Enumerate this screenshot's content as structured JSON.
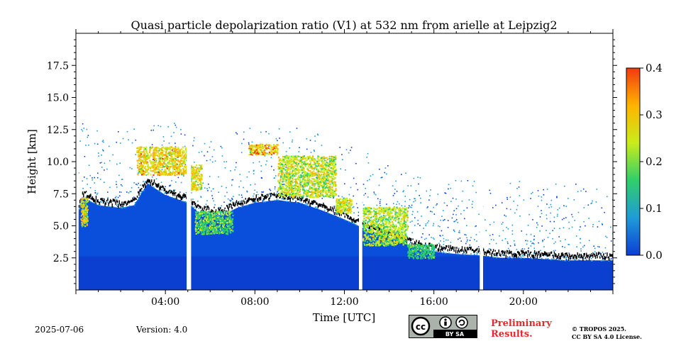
{
  "chart_data": {
    "type": "heatmap",
    "title": "Quasi particle depolarization ratio (V1) at 532 nm from arielle at Leipzig2",
    "xlabel": "Time [UTC]",
    "ylabel": "Height [km]",
    "xlim": [
      0,
      24
    ],
    "ylim": [
      0,
      20
    ],
    "x_ticks": [
      {
        "value": 4,
        "label": "04:00"
      },
      {
        "value": 8,
        "label": "08:00"
      },
      {
        "value": 12,
        "label": "12:00"
      },
      {
        "value": 16,
        "label": "16:00"
      },
      {
        "value": 20,
        "label": "20:00"
      }
    ],
    "y_ticks": [
      {
        "value": 2.5,
        "label": "2.5"
      },
      {
        "value": 5.0,
        "label": "5.0"
      },
      {
        "value": 7.5,
        "label": "7.5"
      },
      {
        "value": 10.0,
        "label": "10.0"
      },
      {
        "value": 12.5,
        "label": "12.5"
      },
      {
        "value": 15.0,
        "label": "15.0"
      },
      {
        "value": 17.5,
        "label": "17.5"
      }
    ],
    "colorbar": {
      "range": [
        0.0,
        0.4
      ],
      "ticks": [
        {
          "value": 0.0,
          "label": "0.0"
        },
        {
          "value": 0.1,
          "label": "0.1"
        },
        {
          "value": 0.2,
          "label": "0.2"
        },
        {
          "value": 0.3,
          "label": "0.3"
        },
        {
          "value": 0.4,
          "label": "0.4"
        }
      ],
      "colors": [
        "#0a3fd6",
        "#1f9bd8",
        "#2fcf6a",
        "#c9ec1a",
        "#ffb400",
        "#f23a10"
      ]
    },
    "background_top_km": [
      [
        0,
        5.5
      ],
      [
        0.3,
        7.2
      ],
      [
        1,
        6.6
      ],
      [
        2,
        6.4
      ],
      [
        2.6,
        6.6
      ],
      [
        3.2,
        8.3
      ],
      [
        4,
        7.4
      ],
      [
        5,
        6.8
      ],
      [
        5.5,
        6.0
      ],
      [
        6.5,
        5.8
      ],
      [
        7.2,
        6.4
      ],
      [
        8,
        6.8
      ],
      [
        9,
        7.0
      ],
      [
        10,
        6.8
      ],
      [
        11,
        6.2
      ],
      [
        12,
        5.5
      ],
      [
        13,
        4.7
      ],
      [
        14,
        4.1
      ],
      [
        15,
        3.4
      ],
      [
        16,
        3.0
      ],
      [
        17,
        2.8
      ],
      [
        18,
        2.7
      ],
      [
        19,
        2.5
      ],
      [
        20,
        2.5
      ],
      [
        21,
        2.4
      ],
      [
        22,
        2.3
      ],
      [
        23,
        2.3
      ],
      [
        24,
        2.3
      ]
    ],
    "high_depol_layers": [
      {
        "t0": 2.7,
        "t1": 5.0,
        "h0": 9.0,
        "h1": 11.2,
        "value": 0.35
      },
      {
        "t0": 5.1,
        "t1": 5.6,
        "h0": 7.8,
        "h1": 9.8,
        "value": 0.33
      },
      {
        "t0": 7.7,
        "t1": 9.0,
        "h0": 10.6,
        "h1": 11.4,
        "value": 0.36
      },
      {
        "t0": 9.0,
        "t1": 11.6,
        "h0": 7.3,
        "h1": 10.5,
        "value": 0.3
      },
      {
        "t0": 11.6,
        "t1": 12.3,
        "h0": 6.0,
        "h1": 7.2,
        "value": 0.3
      },
      {
        "t0": 12.8,
        "t1": 14.8,
        "h0": 3.5,
        "h1": 6.5,
        "value": 0.28
      },
      {
        "t0": 14.8,
        "t1": 16.0,
        "h0": 2.5,
        "h1": 3.6,
        "value": 0.2
      },
      {
        "t0": 0.2,
        "t1": 0.5,
        "h0": 5.0,
        "h1": 7.2,
        "value": 0.33
      },
      {
        "t0": 5.3,
        "t1": 7.0,
        "h0": 4.4,
        "h1": 6.2,
        "value": 0.22
      }
    ],
    "data_gaps_utc": [
      [
        0.0,
        0.12
      ],
      [
        4.95,
        5.15
      ],
      [
        12.65,
        12.8
      ],
      [
        18.05,
        18.2
      ]
    ],
    "date": "2025-07-06",
    "version": "Version: 4.0"
  },
  "footer": {
    "date": "2025-07-06",
    "version": "Version: 4.0",
    "license_badge_text": "BY SA",
    "preliminary_line1": "Preliminary",
    "preliminary_line2": "Results.",
    "copyright_line1": "© TROPOS 2025.",
    "copyright_line2": "CC BY SA 4.0 License."
  }
}
